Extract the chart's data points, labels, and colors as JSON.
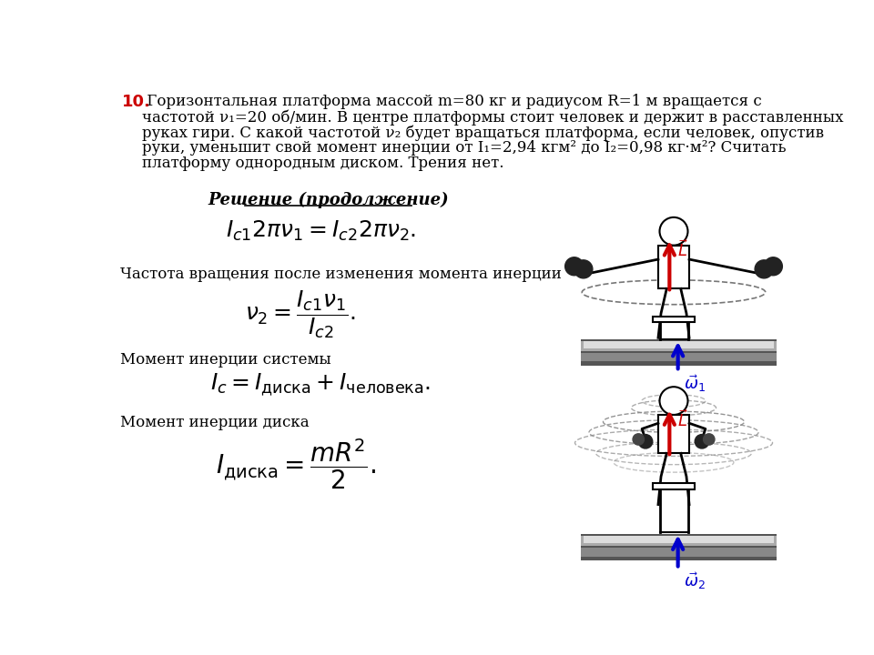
{
  "background_color": "#ffffff",
  "title_number": "10.",
  "title_number_color": "#cc0000",
  "arrow_red_color": "#cc0000",
  "arrow_blue_color": "#0000cc",
  "omega_text_color": "#0000cc",
  "L_text_color": "#cc0000",
  "problem_lines": [
    " Горизонтальная платформа массой m=80 кг и радиусом R=1 м вращается с",
    "частотой ν₁=20 об/мин. В центре платформы стоит человек и держит в расставленных",
    "руках гири. С какой частотой ν₂ будет вращаться платформа, если человек, опустив",
    "руки, уменьшит свой момент инерции от I₁=2,94 кгм² до I₂=0,98 кг·м²? Считать",
    "платформу однородным диском. Трения нет."
  ],
  "section_title": "Решение (продолжение)",
  "text1": "Частота вращения после изменения момента инерции",
  "text2": "Момент инерции системы",
  "text3": "Момент инерции диска"
}
